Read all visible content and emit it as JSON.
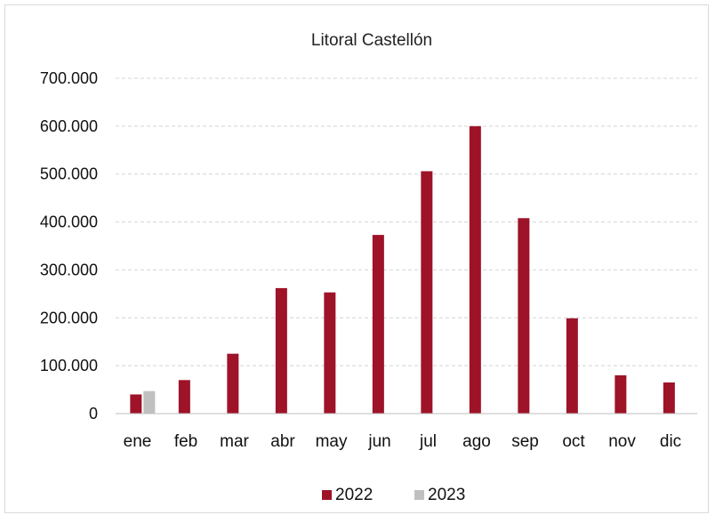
{
  "chart_data": {
    "type": "bar",
    "title": "Litoral Castellón",
    "xlabel": "",
    "ylabel": "",
    "categories": [
      "ene",
      "feb",
      "mar",
      "abr",
      "may",
      "jun",
      "jul",
      "ago",
      "sep",
      "oct",
      "nov",
      "dic"
    ],
    "series": [
      {
        "name": "2022",
        "color": "#9e1328",
        "values": [
          40000,
          70000,
          125000,
          262000,
          253000,
          373000,
          506000,
          600000,
          408000,
          199000,
          80000,
          65000
        ]
      },
      {
        "name": "2023",
        "color": "#c0c0c0",
        "values": [
          47000,
          null,
          null,
          null,
          null,
          null,
          null,
          null,
          null,
          null,
          null,
          null
        ]
      }
    ],
    "ylim": [
      0,
      700000
    ],
    "yticks": [
      0,
      100000,
      200000,
      300000,
      400000,
      500000,
      600000,
      700000
    ],
    "ytick_labels": [
      "0",
      "100.000",
      "200.000",
      "300.000",
      "400.000",
      "500.000",
      "600.000",
      "700.000"
    ],
    "grid": true,
    "grid_style": "dashed",
    "legend_position": "bottom"
  }
}
